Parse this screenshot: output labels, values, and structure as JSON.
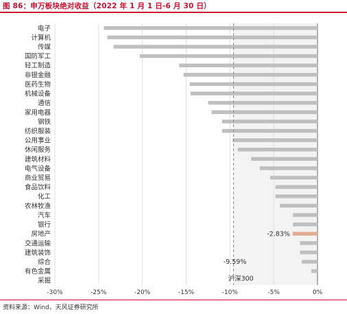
{
  "figure": {
    "title": "图 86：申万板块绝对收益（2022 年 1 月 1 日-6 月 30 日）",
    "source": "资料来源：Wind，天风证券研究所"
  },
  "colors": {
    "accent": "#c8102e",
    "bar": "#bfbfbf",
    "highlight": "#e2ad90",
    "shade": "#f3f3f3",
    "grid": "#d9d9d9",
    "dark_grid": "#404040"
  },
  "chart_data": {
    "type": "bar",
    "orientation": "horizontal",
    "categories": [
      "电子",
      "计算机",
      "传媒",
      "国防军工",
      "轻工制造",
      "非银金融",
      "医药生物",
      "机械设备",
      "通信",
      "家用电器",
      "钢铁",
      "纺织服装",
      "公用事业",
      "休闲服务",
      "建筑材料",
      "电气设备",
      "商业贸易",
      "食品饮料",
      "化工",
      "农林牧渔",
      "汽车",
      "银行",
      "房地产",
      "交通运输",
      "建筑装饰",
      "综合",
      "有色金属",
      "采掘"
    ],
    "values": [
      -24.4,
      -24.0,
      -23.3,
      -20.3,
      -15.8,
      -15.3,
      -14.6,
      -14.5,
      -12.5,
      -12.1,
      -10.9,
      -10.9,
      -9.7,
      -9.1,
      -7.6,
      -6.6,
      -5.4,
      -4.8,
      -4.8,
      -4.3,
      -2.8,
      -2.8,
      -2.83,
      -2.0,
      -2.0,
      -1.8,
      -0.7,
      0.0
    ],
    "highlight_category": "房地产",
    "xlim": [
      -30,
      0
    ],
    "xticks": [
      -30,
      -25,
      -20,
      -15,
      -10,
      -5,
      0
    ],
    "xtick_labels": [
      "-30%",
      "-25%",
      "-20%",
      "-15%",
      "-10%",
      "-5%",
      "0%"
    ],
    "reference_line": {
      "value": -9.59,
      "label": "-9.59%",
      "series_label": "沪深300"
    },
    "data_label": {
      "category": "房地产",
      "text": "-2.83%"
    },
    "grid": "vertical"
  }
}
